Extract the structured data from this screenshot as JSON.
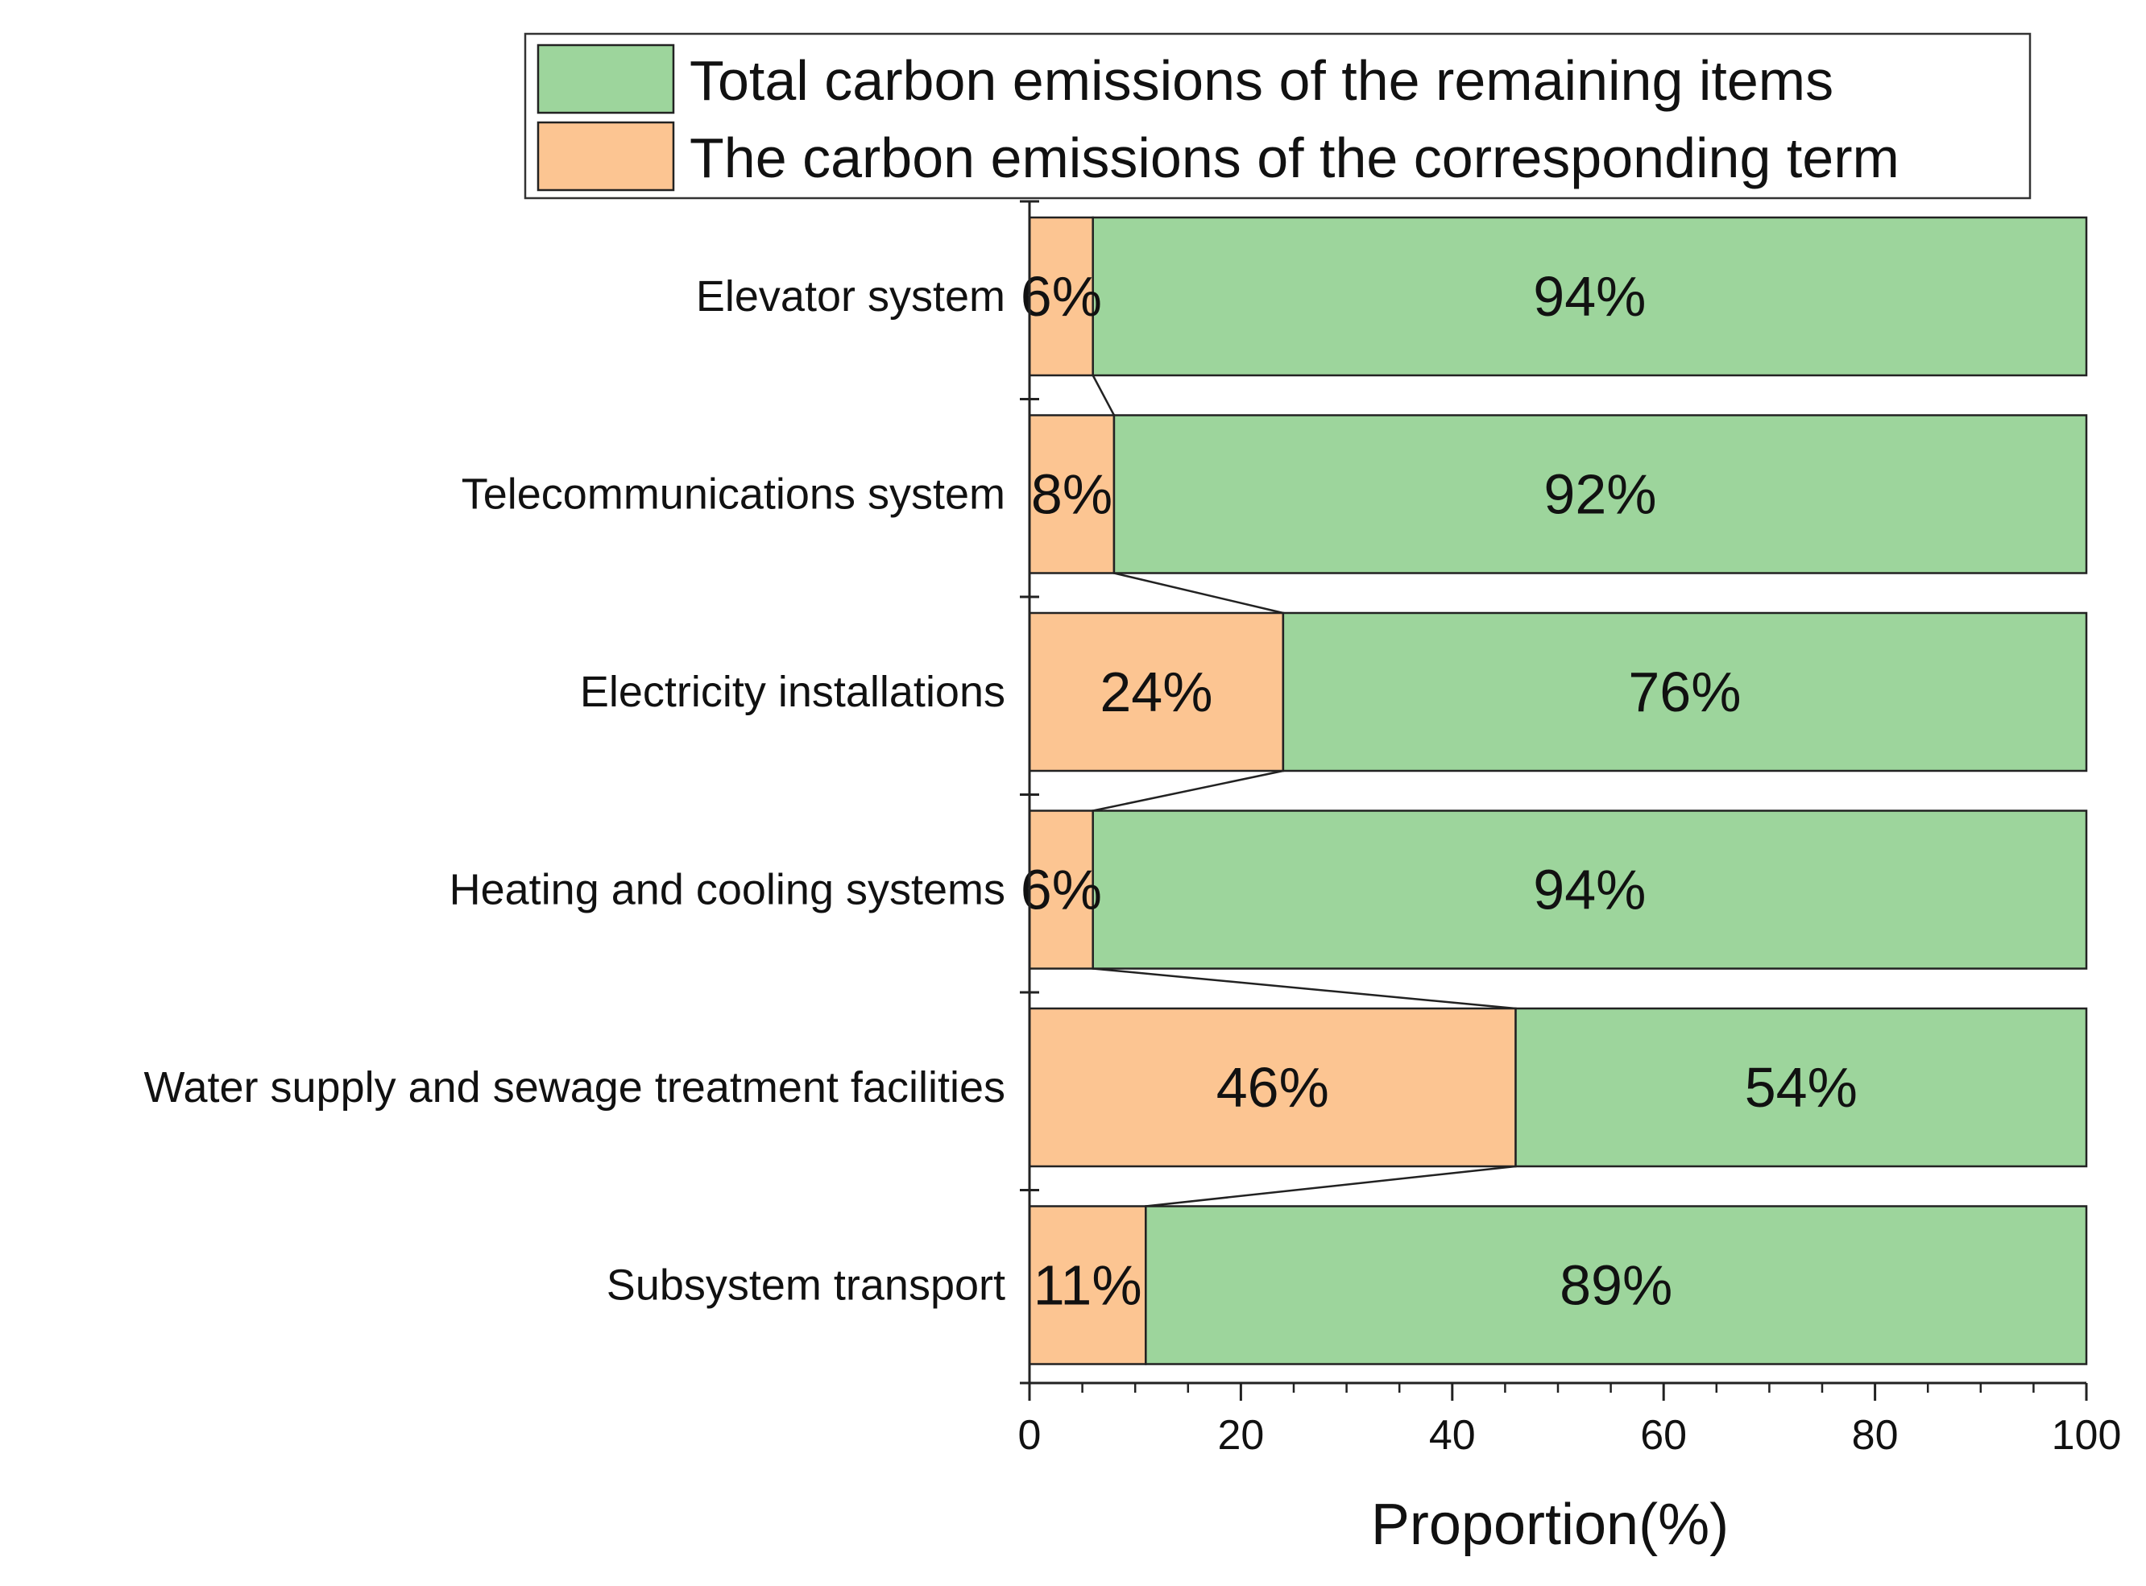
{
  "chart_data": {
    "type": "bar",
    "orientation": "horizontal",
    "stacked": true,
    "title": "",
    "xlabel": "Proportion(%)",
    "ylabel": "",
    "xlim": [
      0,
      100
    ],
    "xticks": [
      0,
      20,
      40,
      60,
      80,
      100
    ],
    "grid": false,
    "legend_position": "top",
    "categories": [
      "Elevator system",
      "Telecommunications system",
      "Electricity installations",
      "Heating and cooling systems",
      "Water supply and sewage treatment facilities",
      "Subsystem transport"
    ],
    "series": [
      {
        "name": "The carbon emissions of the corresponding term",
        "color": "#fcc592",
        "values": [
          6,
          8,
          24,
          6,
          46,
          11
        ],
        "labels": [
          "6%",
          "8%",
          "24%",
          "6%",
          "46%",
          "11%"
        ]
      },
      {
        "name": "Total carbon emissions of the remaining items",
        "color": "#9dd59c",
        "values": [
          94,
          92,
          76,
          94,
          54,
          89
        ],
        "labels": [
          "94%",
          "92%",
          "76%",
          "94%",
          "54%",
          "89%"
        ]
      }
    ],
    "legend_order": [
      "Total carbon emissions of the remaining items",
      "The carbon emissions of the corresponding term"
    ],
    "connector_lines": true
  }
}
